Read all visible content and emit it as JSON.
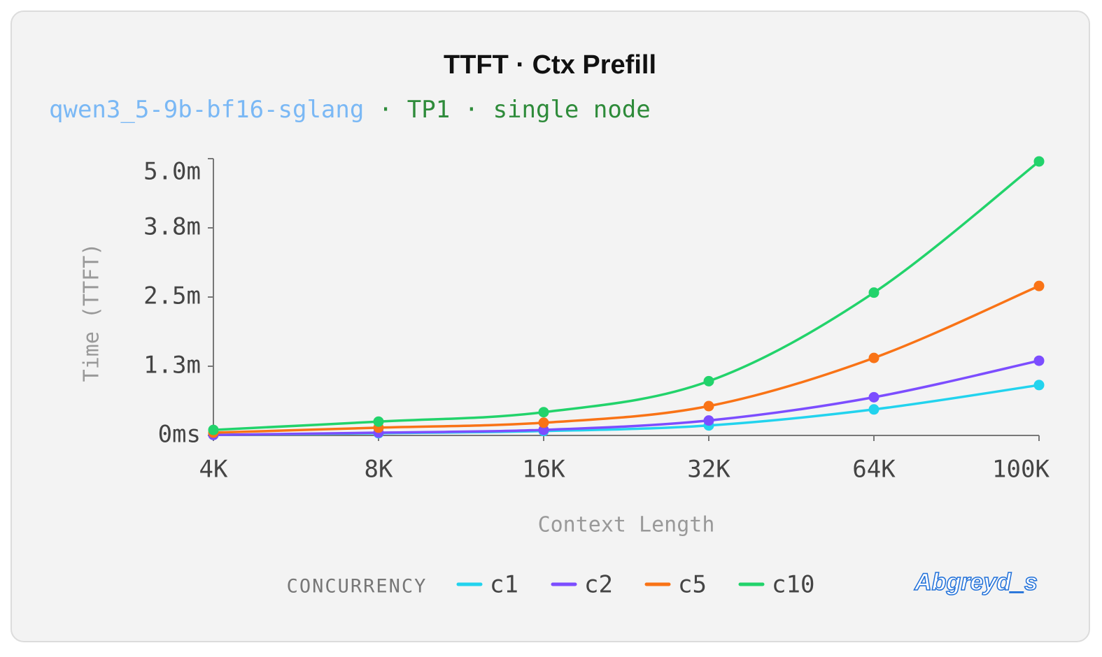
{
  "chart_data": {
    "type": "line",
    "title": "TTFT · Ctx Prefill",
    "subtitle_model": "qwen3_5-9b-bf16-sglang",
    "subtitle_config": " · TP1 · single node",
    "x_label": "Context Length",
    "y_label": "Time (TTFT)",
    "legend_title": "CONCURRENCY",
    "watermark": "Abgreyd_s",
    "categories": [
      "4K",
      "8K",
      "16K",
      "32K",
      "64K",
      "100K"
    ],
    "ylim": [
      0,
      5
    ],
    "yticks": [
      {
        "value": 0,
        "label": "0ms"
      },
      {
        "value": 1.25,
        "label": "1.3m"
      },
      {
        "value": 2.5,
        "label": "2.5m"
      },
      {
        "value": 3.75,
        "label": "3.8m"
      },
      {
        "value": 5,
        "label": "5.0m"
      }
    ],
    "grid": false,
    "series": [
      {
        "name": "c1",
        "color": "#22d3ee",
        "values": [
          0.01,
          0.04,
          0.08,
          0.18,
          0.47,
          0.91
        ]
      },
      {
        "name": "c2",
        "color": "#7c4dff",
        "values": [
          0.01,
          0.05,
          0.1,
          0.27,
          0.69,
          1.35
        ]
      },
      {
        "name": "c5",
        "color": "#f97316",
        "values": [
          0.05,
          0.14,
          0.23,
          0.53,
          1.4,
          2.7
        ]
      },
      {
        "name": "c10",
        "color": "#22d36b",
        "values": [
          0.1,
          0.25,
          0.42,
          0.98,
          2.58,
          4.95
        ]
      }
    ]
  }
}
